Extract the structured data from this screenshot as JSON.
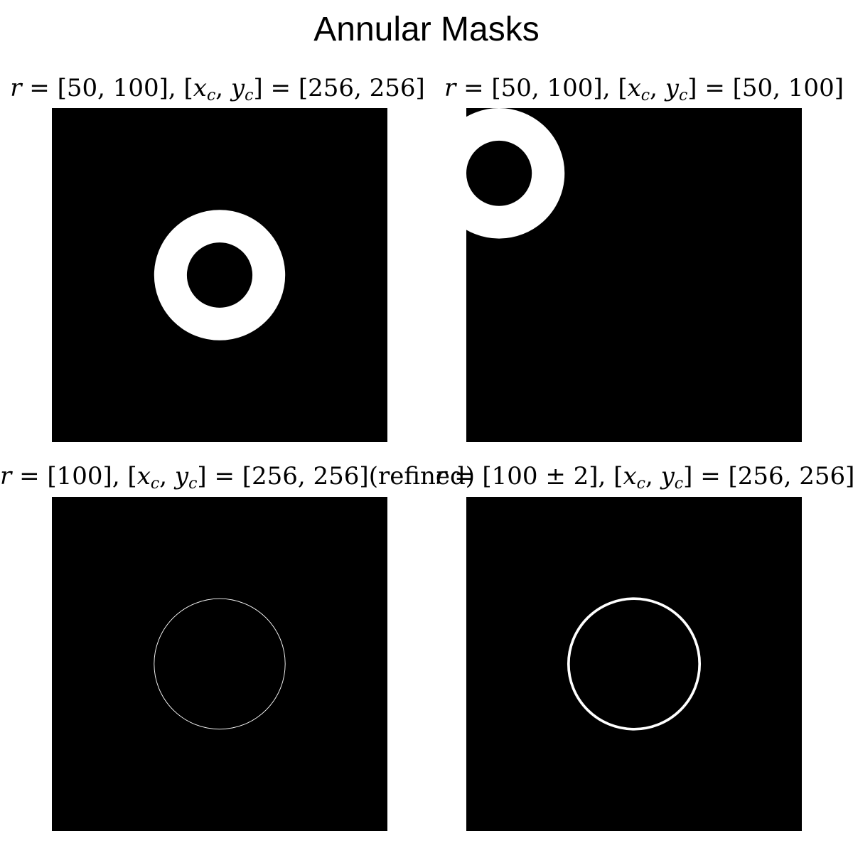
{
  "title": "Annular Masks",
  "image_size": 512,
  "colors": {
    "background": "#000000",
    "mask": "#ffffff"
  },
  "panels": [
    {
      "title_parts": {
        "r": "r",
        "eq": " = ",
        "radius": "[50, 100]",
        "sep": ", [",
        "x": "x",
        "c1": "c",
        "comma": ", ",
        "y": "y",
        "c2": "c",
        "close": "] = ",
        "center": "[256, 256]",
        "suffix": ""
      },
      "r_inner": 50,
      "r_outer": 100,
      "xc": 256,
      "yc": 256,
      "refined": false
    },
    {
      "title_parts": {
        "r": "r",
        "eq": " = ",
        "radius": "[50, 100]",
        "sep": ", [",
        "x": "x",
        "c1": "c",
        "comma": ", ",
        "y": "y",
        "c2": "c",
        "close": "] = ",
        "center": "[50, 100]",
        "suffix": ""
      },
      "r_inner": 50,
      "r_outer": 100,
      "xc": 50,
      "yc": 100,
      "refined": false
    },
    {
      "title_parts": {
        "r": "r",
        "eq": " = ",
        "radius": "[100]",
        "sep": ", [",
        "x": "x",
        "c1": "c",
        "comma": ", ",
        "y": "y",
        "c2": "c",
        "close": "] = ",
        "center": "[256, 256]",
        "suffix": "(refined)"
      },
      "r_inner": 99.5,
      "r_outer": 100.5,
      "xc": 256,
      "yc": 256,
      "refined": true
    },
    {
      "title_parts": {
        "r": "r",
        "eq": " = ",
        "radius": "[100 ± 2]",
        "sep": ", [",
        "x": "x",
        "c1": "c",
        "comma": ", ",
        "y": "y",
        "c2": "c",
        "close": "] = ",
        "center": "[256, 256]",
        "suffix": ""
      },
      "r_inner": 98,
      "r_outer": 102,
      "xc": 256,
      "yc": 256,
      "refined": false
    }
  ]
}
